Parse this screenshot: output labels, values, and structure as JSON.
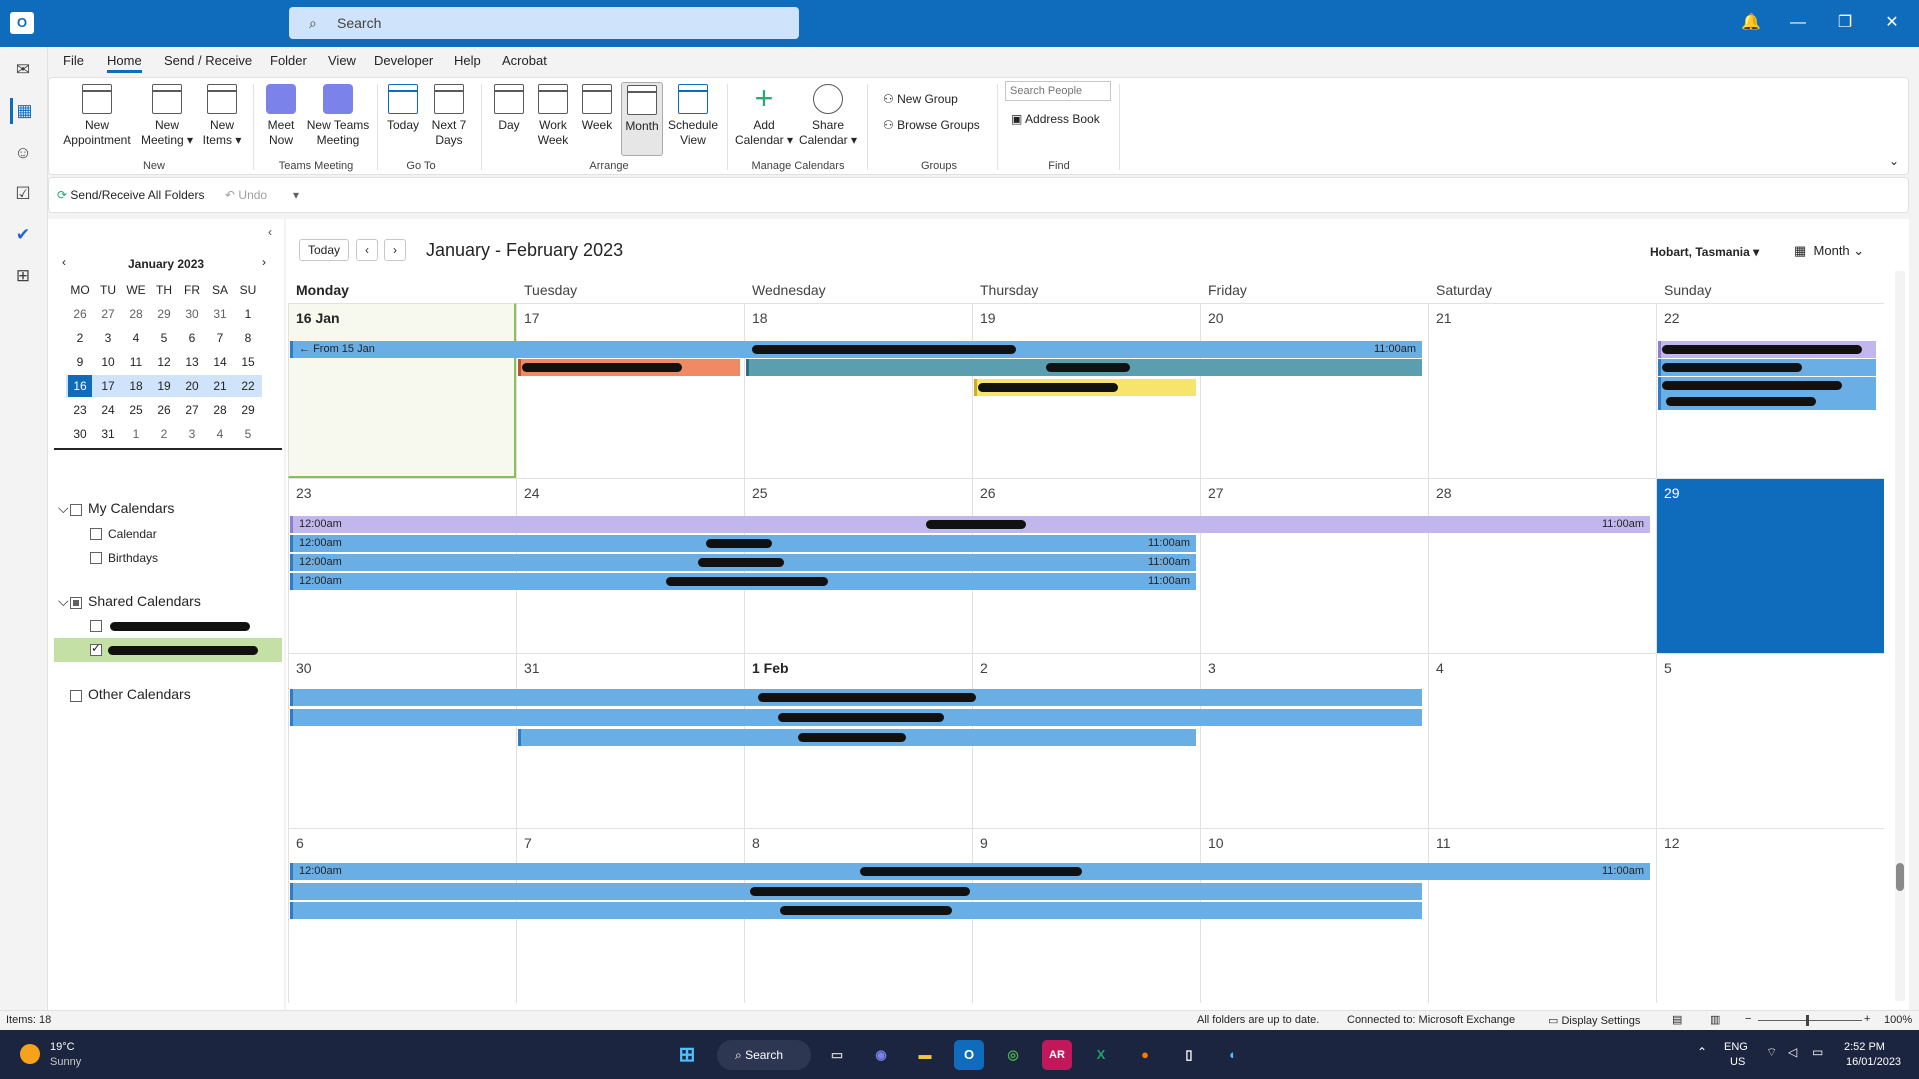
{
  "titlebar": {
    "search_placeholder": "Search",
    "app_icon": "outlook-icon"
  },
  "rail": {
    "icons": [
      "mail-icon",
      "calendar-icon",
      "people-icon",
      "tasks-icon",
      "todo-icon",
      "apps-icon"
    ]
  },
  "tabs": [
    "File",
    "Home",
    "Send / Receive",
    "Folder",
    "View",
    "Developer",
    "Help",
    "Acrobat"
  ],
  "ribbon": {
    "new_appointment": "New Appointment",
    "new_meeting": "New Meeting",
    "new_items": "New Items",
    "group_new": "New",
    "meet_now": "Meet Now",
    "new_teams_meeting": "New Teams Meeting",
    "group_teams": "Teams Meeting",
    "today": "Today",
    "next7": "Next 7 Days",
    "group_goto": "Go To",
    "day": "Day",
    "work_week": "Work Week",
    "week": "Week",
    "month": "Month",
    "schedule_view": "Schedule View",
    "group_arrange": "Arrange",
    "add_calendar": "Add Calendar",
    "share_calendar": "Share Calendar",
    "group_manage": "Manage Calendars",
    "new_group": "New Group",
    "browse_groups": "Browse Groups",
    "group_groups": "Groups",
    "search_people_placeholder": "Search People",
    "address_book": "Address Book",
    "group_find": "Find"
  },
  "qat": {
    "send_receive": "Send/Receive All Folders",
    "undo": "Undo"
  },
  "minical": {
    "title": "January 2023",
    "weekdays": [
      "MO",
      "TU",
      "WE",
      "TH",
      "FR",
      "SA",
      "SU"
    ],
    "weeks": [
      [
        "26",
        "27",
        "28",
        "29",
        "30",
        "31",
        "1"
      ],
      [
        "2",
        "3",
        "4",
        "5",
        "6",
        "7",
        "8"
      ],
      [
        "9",
        "10",
        "11",
        "12",
        "13",
        "14",
        "15"
      ],
      [
        "16",
        "17",
        "18",
        "19",
        "20",
        "21",
        "22"
      ],
      [
        "23",
        "24",
        "25",
        "26",
        "27",
        "28",
        "29"
      ],
      [
        "30",
        "31",
        "1",
        "2",
        "3",
        "4",
        "5"
      ]
    ],
    "today": "16"
  },
  "folders": {
    "my_calendars": "My Calendars",
    "calendar": "Calendar",
    "birthdays": "Birthdays",
    "shared_calendars": "Shared Calendars",
    "other_calendars": "Other Calendars"
  },
  "calendar": {
    "today_btn": "Today",
    "range_title": "January - February 2023",
    "timezone": "Hobart, Tasmania",
    "view": "Month",
    "weekdays": [
      "Monday",
      "Tuesday",
      "Wednesday",
      "Thursday",
      "Friday",
      "Saturday",
      "Sunday"
    ],
    "weeks": [
      [
        "16 Jan",
        "17",
        "18",
        "19",
        "20",
        "21",
        "22"
      ],
      [
        "23",
        "24",
        "25",
        "26",
        "27",
        "28",
        "29"
      ],
      [
        "30",
        "31",
        "1 Feb",
        "2",
        "3",
        "4",
        "5"
      ],
      [
        "6",
        "7",
        "8",
        "9",
        "10",
        "11",
        "12"
      ]
    ],
    "from_label": "From 15 Jan",
    "time_1200": "12:00am",
    "time_1100": "11:00am"
  },
  "status": {
    "items": "Items: 18",
    "uptodate": "All folders are up to date.",
    "connected": "Connected to: Microsoft Exchange",
    "display_settings": "Display Settings",
    "zoom": "100%"
  },
  "taskbar": {
    "weather_temp": "19°C",
    "weather_desc": "Sunny",
    "search": "Search",
    "lang1": "ENG",
    "lang2": "US",
    "time": "2:52 PM",
    "date": "16/01/2023"
  },
  "colors": {
    "accent": "#0f6cbd",
    "event_blue": "#6aaee6",
    "event_purple": "#c2b7ec",
    "event_orange": "#f08a65",
    "event_teal": "#5a9eb0",
    "event_yellow": "#f6e56a"
  }
}
